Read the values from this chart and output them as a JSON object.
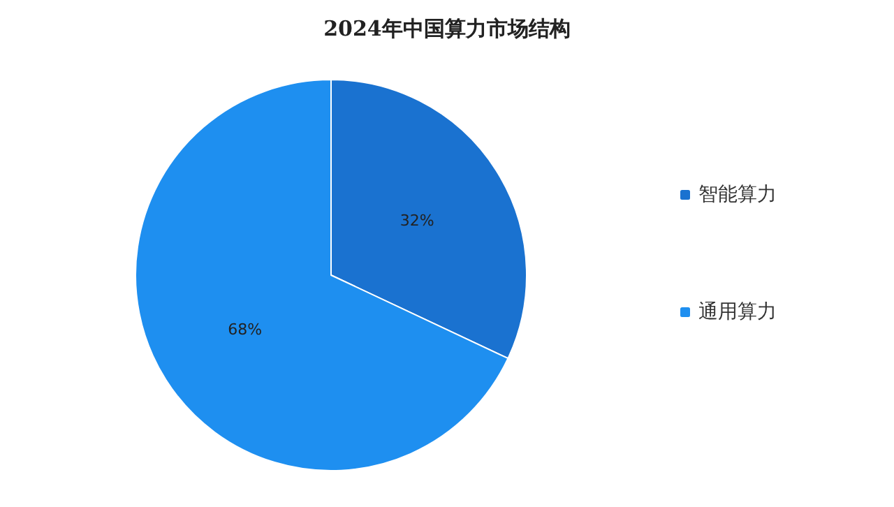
{
  "chart_data": {
    "type": "pie",
    "title": "2024年中国算力市场结构",
    "categories": [
      "智能算力",
      "通用算力"
    ],
    "values": [
      32,
      68
    ],
    "colors": [
      "#1a72d0",
      "#1e8ff0"
    ],
    "value_labels": [
      "32%",
      "68%"
    ],
    "legend": "right"
  }
}
